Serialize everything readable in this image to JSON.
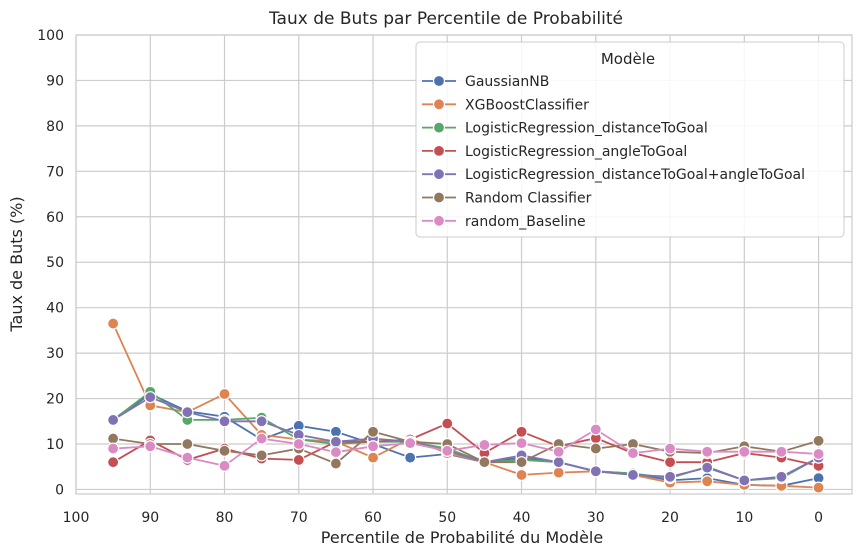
{
  "chart_data": {
    "type": "line",
    "title": "Taux de Buts par Percentile de Probabilité",
    "xlabel": "Percentile de Probabilité du Modèle",
    "ylabel": "Taux de Buts (%)",
    "xlim": [
      100,
      -4.5
    ],
    "ylim": [
      -1,
      100
    ],
    "xticks": [
      100,
      90,
      80,
      70,
      60,
      50,
      40,
      30,
      20,
      10,
      0
    ],
    "yticks": [
      0,
      10,
      20,
      30,
      40,
      50,
      60,
      70,
      80,
      90,
      100
    ],
    "grid": true,
    "legend_title": "Modèle",
    "legend_position": "top-right",
    "x": [
      95,
      90,
      85,
      80,
      75,
      70,
      65,
      60,
      55,
      50,
      45,
      40,
      35,
      30,
      25,
      20,
      15,
      10,
      5,
      0
    ],
    "series": [
      {
        "name": "GaussianNB",
        "color": "#4c72b0",
        "values": [
          15.3,
          21.0,
          17.2,
          16.0,
          11.0,
          14.0,
          12.7,
          10.0,
          7.0,
          7.8,
          6.0,
          7.0,
          6.0,
          4.0,
          3.5,
          2.0,
          2.5,
          1.0,
          0.8,
          2.5
        ]
      },
      {
        "name": "XGBoostClassifier",
        "color": "#dd8452",
        "values": [
          36.5,
          18.5,
          17.0,
          21.0,
          12.0,
          11.0,
          10.5,
          7.0,
          11.2,
          8.0,
          6.0,
          3.2,
          3.7,
          4.0,
          3.2,
          1.5,
          1.8,
          1.0,
          0.8,
          0.4
        ]
      },
      {
        "name": "LogisticRegression_distanceToGoal",
        "color": "#55a868",
        "values": [
          15.3,
          21.5,
          15.3,
          15.3,
          15.8,
          11.0,
          10.0,
          10.5,
          10.5,
          9.0,
          6.0,
          6.5,
          6.0,
          4.0,
          3.5,
          2.5,
          5.0,
          2.0,
          2.5,
          7.0
        ]
      },
      {
        "name": "LogisticRegression_angleToGoal",
        "color": "#c44e52",
        "values": [
          6.0,
          10.8,
          6.5,
          9.0,
          6.8,
          6.5,
          10.5,
          10.5,
          11.0,
          14.5,
          8.0,
          12.7,
          9.5,
          11.3,
          8.0,
          6.0,
          6.0,
          8.0,
          7.0,
          5.2
        ]
      },
      {
        "name": "LogisticRegression_distanceToGoal+angleToGoal",
        "color": "#8172b3",
        "values": [
          15.3,
          20.3,
          17.0,
          15.0,
          15.0,
          12.0,
          10.5,
          11.2,
          10.5,
          8.5,
          6.0,
          7.5,
          6.0,
          4.0,
          3.2,
          2.8,
          4.8,
          2.0,
          2.8,
          7.0
        ]
      },
      {
        "name": "Random Classifier",
        "color": "#937860",
        "values": [
          11.2,
          10.0,
          10.0,
          8.5,
          7.5,
          9.0,
          5.7,
          12.7,
          10.5,
          10.0,
          6.0,
          6.0,
          10.0,
          9.0,
          10.0,
          8.3,
          8.0,
          9.5,
          8.3,
          10.7
        ]
      },
      {
        "name": "random_Baseline",
        "color": "#da8bc3",
        "values": [
          9.0,
          9.5,
          7.0,
          5.2,
          11.2,
          10.0,
          8.2,
          9.5,
          10.2,
          8.5,
          9.8,
          10.2,
          8.3,
          13.2,
          8.0,
          9.0,
          8.3,
          8.3,
          8.3,
          7.8
        ]
      }
    ]
  }
}
